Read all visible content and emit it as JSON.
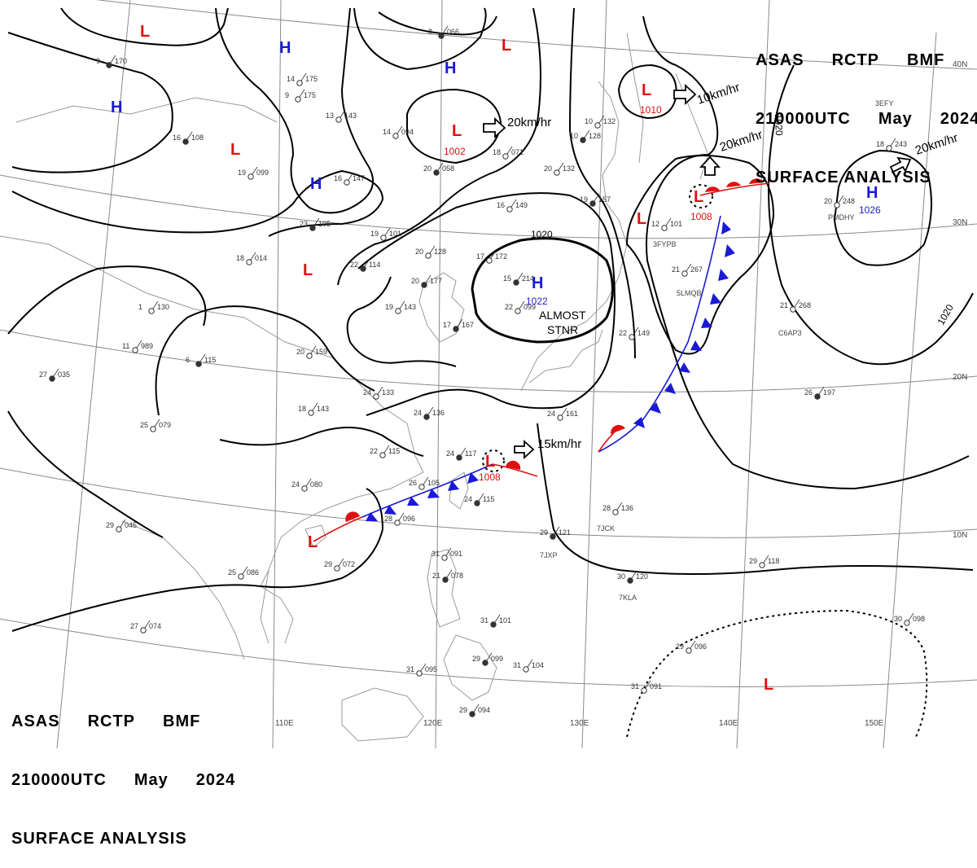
{
  "header_top_right": {
    "line1": [
      "ASAS",
      "RCTP",
      "BMF"
    ],
    "line2": [
      "210000UTC",
      "May",
      "2024"
    ],
    "line3": "SURFACE ANALYSIS"
  },
  "header_bottom_left": {
    "line1": [
      "ASAS",
      "RCTP",
      "BMF"
    ],
    "line2": [
      "210000UTC",
      "May",
      "2024"
    ],
    "line3": "SURFACE ANALYSIS"
  },
  "colors": {
    "high": "#1a1ad6",
    "low": "#e01010",
    "cold_front": "#1a1ad6",
    "warm_front": "#e01010",
    "isobar": "#000000",
    "grid": "#8a8a8a",
    "coast": "#9a9a9a"
  },
  "lon_ticks": [
    "110E",
    "120E",
    "130E",
    "140E",
    "150E"
  ],
  "lat_ticks": [
    "40N",
    "30N",
    "20N",
    "10N"
  ],
  "isobar_labels": [
    "1020",
    "1020",
    "1020"
  ],
  "pressure_systems": [
    {
      "type": "L",
      "value": ""
    },
    {
      "type": "H",
      "value": ""
    },
    {
      "type": "H",
      "value": ""
    },
    {
      "type": "H",
      "value": ""
    },
    {
      "type": "L",
      "value": ""
    },
    {
      "type": "H",
      "value": ""
    },
    {
      "type": "L",
      "value": "1002"
    },
    {
      "type": "L",
      "value": ""
    },
    {
      "type": "L",
      "value": "1010"
    },
    {
      "type": "L",
      "value": ""
    },
    {
      "type": "L",
      "value": "1008"
    },
    {
      "type": "H",
      "value": "1026"
    },
    {
      "type": "H",
      "value": "1022"
    },
    {
      "type": "L",
      "value": "1008"
    },
    {
      "type": "L",
      "value": ""
    },
    {
      "type": "L",
      "value": ""
    }
  ],
  "motion_labels": [
    "20km/hr",
    "10km/hr",
    "20km/hr",
    "20km/hr",
    "15km/hr"
  ],
  "stationary_label": [
    "ALMOST",
    "STNR"
  ],
  "station_plots": [
    {
      "t": "9",
      "p": "170"
    },
    {
      "t": "14",
      "p": "175"
    },
    {
      "t": "9",
      "p": "175"
    },
    {
      "t": "8",
      "p": "066"
    },
    {
      "t": "13",
      "p": "143"
    },
    {
      "t": "14",
      "p": "094"
    },
    {
      "t": "16",
      "p": "108"
    },
    {
      "t": "19",
      "p": "099"
    },
    {
      "t": "16",
      "p": "147"
    },
    {
      "t": "20",
      "p": "058"
    },
    {
      "t": "18",
      "p": "071"
    },
    {
      "t": "20",
      "p": "132"
    },
    {
      "t": "10",
      "p": "128"
    },
    {
      "t": "10",
      "p": "132"
    },
    {
      "t": "16",
      "p": "149"
    },
    {
      "t": "19",
      "p": "157"
    },
    {
      "t": "18",
      "p": "243"
    },
    {
      "t": "20",
      "p": "248"
    },
    {
      "t": "23",
      "p": "105"
    },
    {
      "t": "19",
      "p": "101"
    },
    {
      "t": "18",
      "p": "014"
    },
    {
      "t": "22",
      "p": "114"
    },
    {
      "t": "20",
      "p": "128"
    },
    {
      "t": "17",
      "p": "172"
    },
    {
      "t": "15",
      "p": "214"
    },
    {
      "t": "12",
      "p": "101"
    },
    {
      "t": "21",
      "p": "267"
    },
    {
      "t": "20",
      "p": "177"
    },
    {
      "t": "1",
      "p": "130"
    },
    {
      "t": "11",
      "p": "989"
    },
    {
      "t": "6",
      "p": "115"
    },
    {
      "t": "20",
      "p": "159"
    },
    {
      "t": "19",
      "p": "143"
    },
    {
      "t": "17",
      "p": "167"
    },
    {
      "t": "22",
      "p": "099"
    },
    {
      "t": "21",
      "p": "268"
    },
    {
      "t": "27",
      "p": "035"
    },
    {
      "t": "24",
      "p": "133"
    },
    {
      "t": "18",
      "p": "143"
    },
    {
      "t": "24",
      "p": "136"
    },
    {
      "t": "24",
      "p": "161"
    },
    {
      "t": "22",
      "p": "149"
    },
    {
      "t": "26",
      "p": "197"
    },
    {
      "t": "25",
      "p": "079"
    },
    {
      "t": "22",
      "p": "115"
    },
    {
      "t": "24",
      "p": "117"
    },
    {
      "t": "24",
      "p": "080"
    },
    {
      "t": "26",
      "p": "105"
    },
    {
      "t": "24",
      "p": "115"
    },
    {
      "t": "28",
      "p": "136"
    },
    {
      "t": "28",
      "p": "096"
    },
    {
      "t": "29",
      "p": "121"
    },
    {
      "t": "29",
      "p": "045"
    },
    {
      "t": "31",
      "p": "091"
    },
    {
      "t": "21",
      "p": "078"
    },
    {
      "t": "29",
      "p": "072"
    },
    {
      "t": "25",
      "p": "086"
    },
    {
      "t": "30",
      "p": "120"
    },
    {
      "t": "29",
      "p": "118"
    },
    {
      "t": "27",
      "p": "074"
    },
    {
      "t": "31",
      "p": "101"
    },
    {
      "t": "30",
      "p": "098"
    },
    {
      "t": "29",
      "p": "096"
    },
    {
      "t": "29",
      "p": "099"
    },
    {
      "t": "31",
      "p": "104"
    },
    {
      "t": "31",
      "p": "095"
    },
    {
      "t": "29",
      "p": "094"
    },
    {
      "t": "31",
      "p": "091"
    }
  ],
  "ship_callsigns": [
    "3EFY",
    "3FYPB",
    "5LMQB",
    "PMDHY",
    "C6AP3",
    "7JCK",
    "7JXP",
    "7KLA"
  ]
}
